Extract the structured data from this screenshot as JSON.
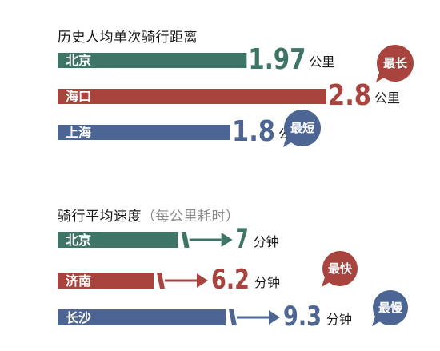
{
  "chart_data": [
    {
      "type": "bar",
      "title": "历史人均单次骑行距离",
      "categories": [
        "北京",
        "海口",
        "上海"
      ],
      "values": [
        1.97,
        2.8,
        1.8
      ],
      "value_labels": [
        "1.97",
        "2.8",
        "1.8"
      ],
      "unit": "公里",
      "colors": [
        "#3e7566",
        "#a8443d",
        "#4d6592"
      ],
      "badges": [
        {
          "category": "海口",
          "text": "最长",
          "color": "#a8443d"
        },
        {
          "category": "上海",
          "text": "最短",
          "color": "#4d6592"
        }
      ]
    },
    {
      "type": "bar",
      "title": "骑行平均速度",
      "subtitle": "（每公里耗时）",
      "categories": [
        "北京",
        "济南",
        "长沙"
      ],
      "values": [
        7,
        6.2,
        9.3
      ],
      "value_labels": [
        "7",
        "6.2",
        "9.3"
      ],
      "unit": "分钟",
      "colors": [
        "#3e7566",
        "#a8443d",
        "#4d6592"
      ],
      "badges": [
        {
          "category": "济南",
          "text": "最快",
          "color": "#a8443d"
        },
        {
          "category": "长沙",
          "text": "最慢",
          "color": "#4d6592"
        }
      ]
    }
  ]
}
